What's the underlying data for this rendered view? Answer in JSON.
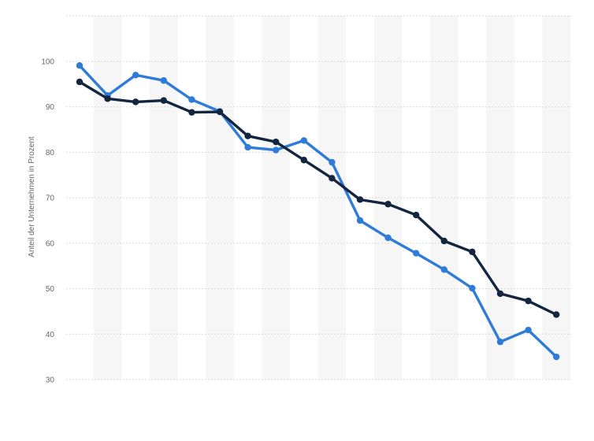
{
  "chart_data": {
    "type": "line",
    "title": "",
    "xlabel": "",
    "ylabel": "Anteil der Unternehmen in Prozent",
    "ylim": [
      30,
      100
    ],
    "yticks": [
      30,
      40,
      50,
      60,
      70,
      80,
      90,
      100
    ],
    "grid": true,
    "legend": "none",
    "x": [
      1,
      2,
      3,
      4,
      5,
      6,
      7,
      8,
      9,
      10,
      11,
      12,
      13,
      14,
      15,
      16,
      17,
      18
    ],
    "series": [
      {
        "color": "#2e7bd8",
        "values": [
          99.1,
          92.5,
          97.0,
          95.8,
          91.6,
          89.0,
          81.1,
          80.5,
          82.6,
          77.8,
          65.0,
          61.2,
          57.8,
          54.2,
          50.1,
          38.3,
          40.9,
          35.0
        ]
      },
      {
        "color": "#14263f",
        "values": [
          95.5,
          91.8,
          91.1,
          91.4,
          88.8,
          88.9,
          83.6,
          82.3,
          78.3,
          74.3,
          69.6,
          68.6,
          66.2,
          60.5,
          58.1,
          48.9,
          47.3,
          44.3
        ]
      }
    ]
  }
}
